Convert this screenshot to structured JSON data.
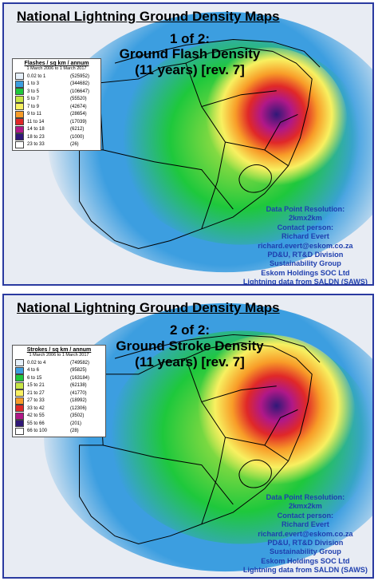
{
  "maps": [
    {
      "title": "National Lightning Ground Density Maps",
      "subtitle_lines": [
        "1 of 2:",
        "Ground Flash Density",
        "(11 years) [rev. 7]"
      ],
      "legend": {
        "header": "Flashes / sq km / annum",
        "period": "1 March 2006 to 1 March 2017",
        "classes": [
          {
            "range": "0.02 to 1",
            "count": "(525952)",
            "color": "#e6f0fa"
          },
          {
            "range": "1 to 3",
            "count": "(344682)",
            "color": "#3c9ee0"
          },
          {
            "range": "3 to 5",
            "count": "(106647)",
            "color": "#1ec83c"
          },
          {
            "range": "5 to 7",
            "count": "(55520)",
            "color": "#c8e646"
          },
          {
            "range": "7 to 9",
            "count": "(42674)",
            "color": "#f8f060"
          },
          {
            "range": "9 to 11",
            "count": "(28654)",
            "color": "#f89c28"
          },
          {
            "range": "11 to 14",
            "count": "(17039)",
            "color": "#e02828"
          },
          {
            "range": "14 to 18",
            "count": "(6212)",
            "color": "#b01888"
          },
          {
            "range": "18 to 23",
            "count": "(1000)",
            "color": "#301878"
          },
          {
            "range": "23 to 33",
            "count": "(26)",
            "color": "#ffffff"
          }
        ]
      },
      "info_lines": [
        "Data Point Resolution:",
        "2kmx2km",
        "Contact person:",
        "Richard Evert",
        "richard.evert@eskom.co.za",
        "PD&U, RT&D Division",
        "Sustainability Group",
        "Eskom Holdings SOC Ltd",
        "Lightning data from SALDN (SAWS)"
      ]
    },
    {
      "title": "National Lightning Ground Density Maps",
      "subtitle_lines": [
        "2 of 2:",
        "Ground Stroke Density",
        "(11 years) [rev. 7]"
      ],
      "legend": {
        "header": "Strokes / sq km / annum",
        "period": "1 March 2006 to 1 March 2017",
        "classes": [
          {
            "range": "0.02 to 4",
            "count": "(749582)",
            "color": "#e6f0fa"
          },
          {
            "range": "4 to 6",
            "count": "(95825)",
            "color": "#3c9ee0"
          },
          {
            "range": "6 to 15",
            "count": "(163184)",
            "color": "#1ec83c"
          },
          {
            "range": "15 to 21",
            "count": "(62138)",
            "color": "#c8e646"
          },
          {
            "range": "21 to 27",
            "count": "(41770)",
            "color": "#f8f060"
          },
          {
            "range": "27 to 33",
            "count": "(18992)",
            "color": "#f89c28"
          },
          {
            "range": "33 to 42",
            "count": "(12306)",
            "color": "#e02828"
          },
          {
            "range": "42 to 55",
            "count": "(3502)",
            "color": "#b01888"
          },
          {
            "range": "55 to 66",
            "count": "(201)",
            "color": "#301878"
          },
          {
            "range": "66 to 100",
            "count": "(28)",
            "color": "#ffffff"
          }
        ]
      },
      "info_lines": [
        "Data Point Resolution:",
        "2kmx2km",
        "Contact person:",
        "Richard Evert",
        "richard.evert@eskom.co.za",
        "PD&U, RT&D Division",
        "Sustainability Group",
        "Eskom Holdings SOC Ltd",
        "Lightning data from SALDN (SAWS)"
      ]
    }
  ]
}
